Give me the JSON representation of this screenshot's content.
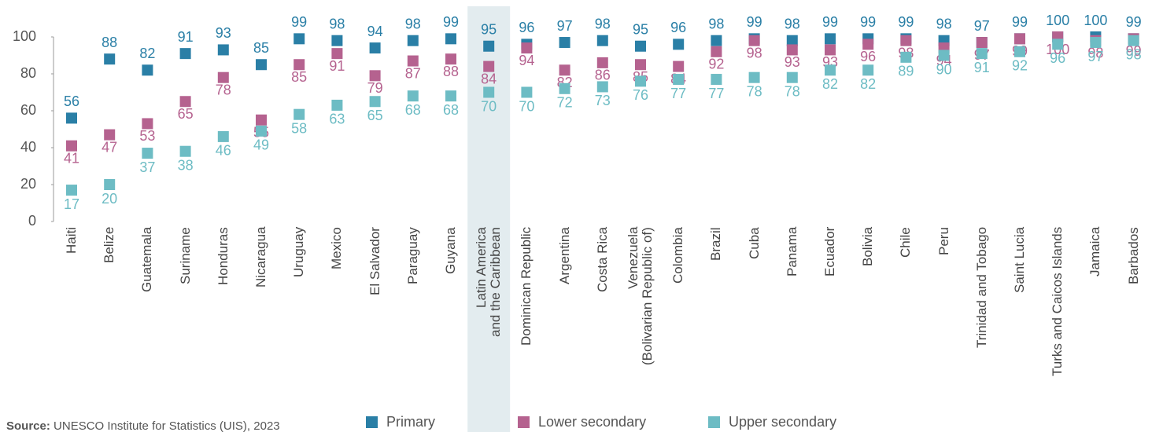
{
  "chart_data": {
    "type": "dot",
    "categories": [
      "Haiti",
      "Belize",
      "Guatemala",
      "Suriname",
      "Honduras",
      "Nicaragua",
      "Uruguay",
      "Mexico",
      "El Salvador",
      "Paraguay",
      "Guyana",
      "Latin America\nand the Caribbean",
      "Dominican Republic",
      "Argentina",
      "Costa Rica",
      "Venezuela\n(Bolivarian Republic of)",
      "Colombia",
      "Brazil",
      "Cuba",
      "Panama",
      "Ecuador",
      "Bolivia",
      "Chile",
      "Peru",
      "Trinidad and Tobago",
      "Saint Lucia",
      "Turks and Caicos Islands",
      "Jamaica",
      "Barbados"
    ],
    "highlight": "Latin America\nand the Caribbean",
    "series": [
      {
        "name": "Primary",
        "color": "#2a7fa6",
        "values": [
          56,
          88,
          82,
          91,
          93,
          85,
          99,
          98,
          94,
          98,
          99,
          95,
          96,
          97,
          98,
          95,
          96,
          98,
          99,
          98,
          99,
          99,
          99,
          98,
          97,
          99,
          100,
          100,
          99
        ]
      },
      {
        "name": "Lower secondary",
        "color": "#b5628f",
        "values": [
          41,
          47,
          53,
          65,
          78,
          55,
          85,
          91,
          79,
          87,
          88,
          84,
          94,
          82,
          86,
          85,
          84,
          92,
          98,
          93,
          93,
          96,
          98,
          94,
          97,
          99,
          100,
          98,
          99
        ]
      },
      {
        "name": "Upper secondary",
        "color": "#6dbcc4",
        "values": [
          17,
          20,
          37,
          38,
          46,
          49,
          58,
          63,
          65,
          68,
          68,
          70,
          70,
          72,
          73,
          76,
          77,
          77,
          78,
          78,
          82,
          82,
          89,
          90,
          91,
          92,
          96,
          97,
          98
        ]
      }
    ],
    "ylim": [
      0,
      100
    ],
    "yticks": [
      0,
      20,
      40,
      60,
      80,
      100
    ],
    "source_label": "Source:",
    "source": "UNESCO Institute for Statistics (UIS), 2023"
  }
}
